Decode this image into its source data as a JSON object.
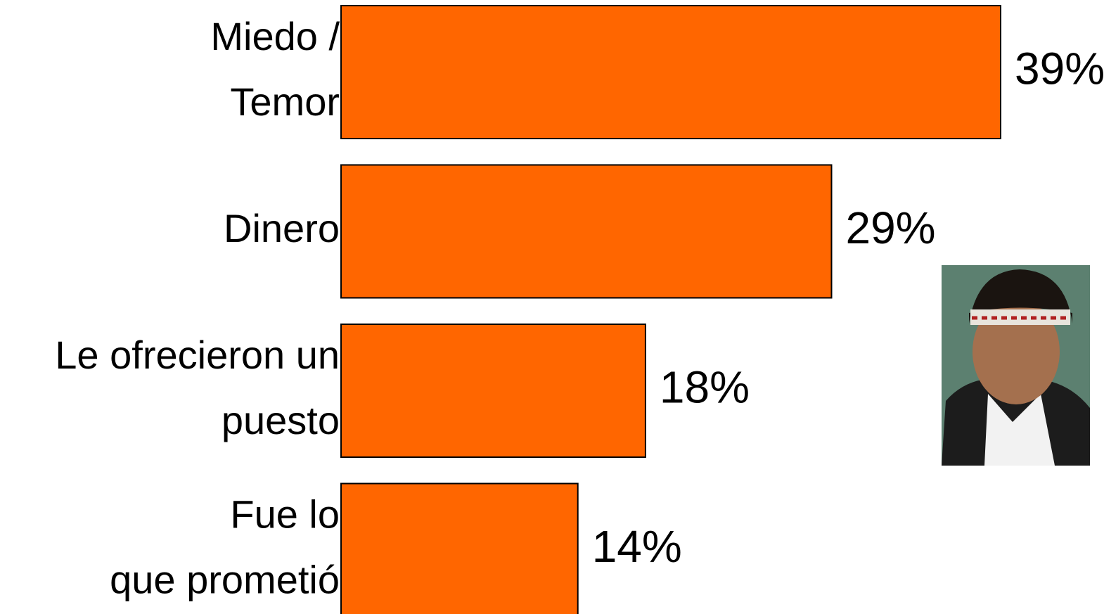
{
  "chart_data": {
    "type": "bar",
    "orientation": "horizontal",
    "categories": [
      [
        "Miedo /",
        "Temor"
      ],
      [
        "Dinero"
      ],
      [
        "Le ofrecieron un",
        "puesto"
      ],
      [
        "Fue lo",
        "que prometió"
      ]
    ],
    "values": [
      39,
      29,
      18,
      14
    ],
    "value_labels": [
      "39%",
      "29%",
      "18%",
      "14%"
    ],
    "color": "#ff6600"
  }
}
